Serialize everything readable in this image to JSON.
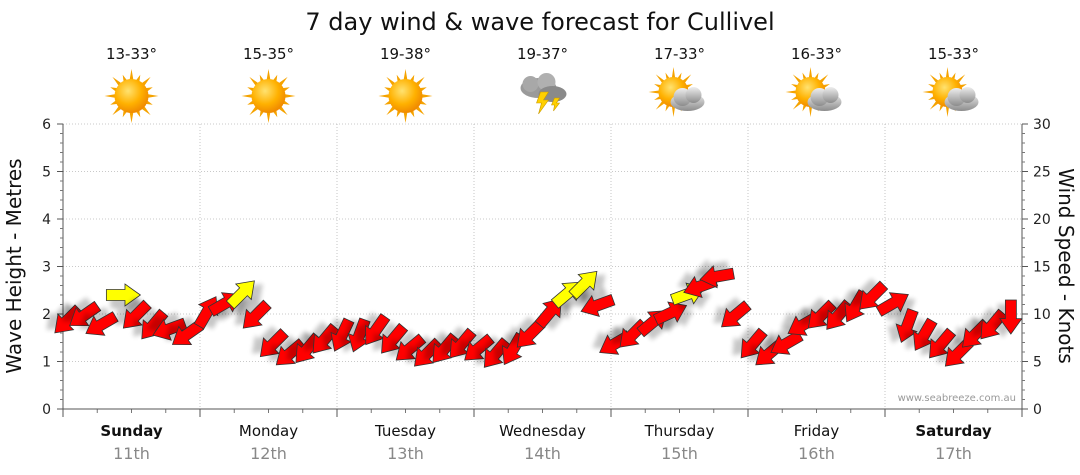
{
  "chart_data": {
    "type": "scatter",
    "title": "7 day wind & wave forecast for Cullivel",
    "ylabel": "Wave Height - Metres",
    "y2label": "Wind Speed - Knots",
    "ylim": [
      0,
      6
    ],
    "y2lim": [
      0,
      30
    ],
    "yticks": [
      "0",
      "1",
      "2",
      "3",
      "4",
      "5",
      "6"
    ],
    "y2ticks": [
      "0",
      "5",
      "10",
      "15",
      "20",
      "25",
      "30"
    ],
    "credit": "www.seabreeze.com.au",
    "grid": true,
    "days": [
      {
        "name": "Sunday",
        "date": "11th",
        "temp": "13-33°",
        "icon": "sun-icon",
        "bold": true
      },
      {
        "name": "Monday",
        "date": "12th",
        "temp": "15-35°",
        "icon": "sun-icon",
        "bold": false
      },
      {
        "name": "Tuesday",
        "date": "13th",
        "temp": "19-38°",
        "icon": "sun-icon",
        "bold": false
      },
      {
        "name": "Wednesday",
        "date": "14th",
        "temp": "19-37°",
        "icon": "storm-icon",
        "bold": false
      },
      {
        "name": "Thursday",
        "date": "15th",
        "temp": "17-33°",
        "icon": "partly-cloudy-icon",
        "bold": false
      },
      {
        "name": "Friday",
        "date": "16th",
        "temp": "16-33°",
        "icon": "partly-cloudy-icon",
        "bold": false
      },
      {
        "name": "Saturday",
        "date": "17th",
        "temp": "15-33°",
        "icon": "partly-cloudy-icon",
        "bold": true
      }
    ],
    "colors": {
      "strong_wind": "#ff0000",
      "light_wind": "#ffff00",
      "outline": "#333333"
    },
    "series": [
      {
        "x_unit": "hours-from-sunday-00",
        "x": [
          0,
          3,
          6,
          9,
          12,
          15,
          18,
          21,
          24,
          27,
          30,
          33,
          36,
          39,
          42,
          45,
          48,
          51,
          54,
          57,
          60,
          63,
          66,
          69,
          72,
          75,
          78,
          81,
          84,
          87,
          90,
          93,
          96,
          99,
          102,
          105,
          108,
          111,
          114,
          117,
          120,
          123,
          126,
          129,
          132,
          135,
          138,
          141,
          144,
          147,
          150,
          153,
          156,
          159,
          162,
          165
        ],
        "wind_knots": [
          9.5,
          10,
          9,
          12,
          10,
          9,
          8.5,
          8,
          10,
          11,
          12,
          10,
          7,
          6,
          6.5,
          7.5,
          8,
          8,
          8.5,
          7.5,
          6.5,
          6,
          6.5,
          7,
          6.5,
          6,
          6.5,
          8,
          10,
          12,
          13,
          11,
          7,
          8,
          9,
          10,
          12,
          13,
          14,
          10,
          7,
          6,
          7,
          9,
          10,
          10,
          11,
          12,
          11,
          9,
          8,
          7,
          6,
          8,
          9,
          10
        ],
        "direction_deg": [
          225,
          215,
          210,
          0,
          225,
          230,
          200,
          215,
          60,
          30,
          45,
          225,
          225,
          220,
          230,
          230,
          245,
          250,
          235,
          230,
          220,
          225,
          230,
          230,
          220,
          230,
          240,
          225,
          50,
          40,
          45,
          200,
          210,
          225,
          40,
          25,
          20,
          200,
          190,
          220,
          230,
          220,
          210,
          210,
          225,
          230,
          240,
          225,
          30,
          250,
          240,
          230,
          225,
          225,
          230,
          270
        ]
      }
    ]
  }
}
